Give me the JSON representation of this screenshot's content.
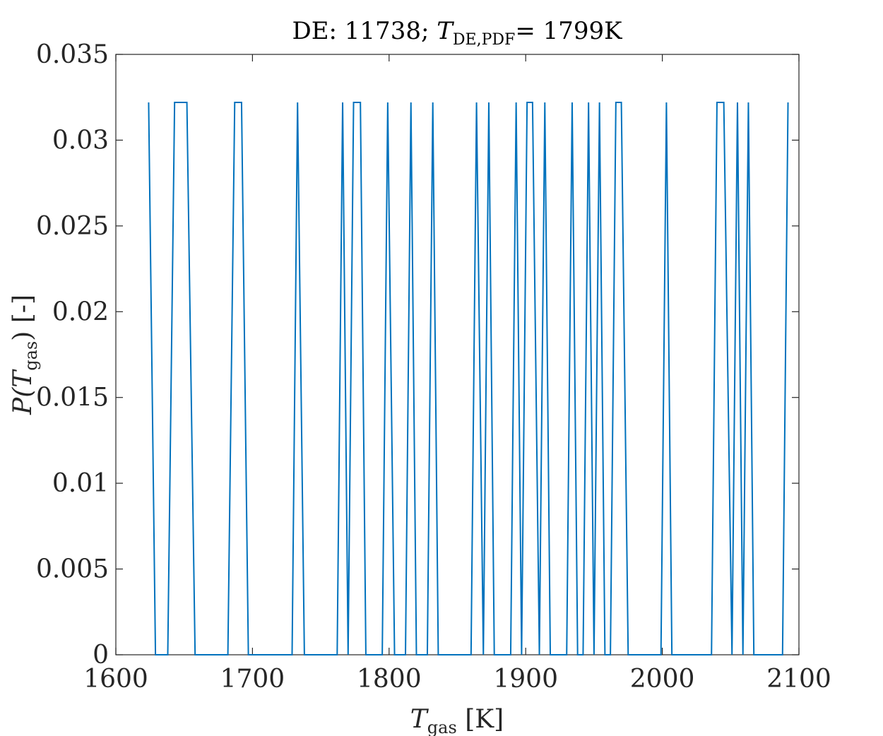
{
  "chart_data": {
    "type": "line",
    "title": {
      "prefix": "DE: 11738; ",
      "var": "T",
      "sub": "DE,PDF",
      "suffix": "= 1799K"
    },
    "xlabel": {
      "var": "T",
      "sub": "gas",
      "unit": " [K]"
    },
    "ylabel": {
      "text": "P(T",
      "sub": "gas",
      "suffix": ") [-]"
    },
    "xlim": [
      1600,
      2100
    ],
    "ylim": [
      0,
      0.035
    ],
    "xticks": [
      1600,
      1700,
      1800,
      1900,
      2000,
      2100
    ],
    "xtick_labels": [
      "1600",
      "1700",
      "1800",
      "1900",
      "2000",
      "2100"
    ],
    "yticks": [
      0,
      0.005,
      0.01,
      0.015,
      0.02,
      0.025,
      0.03,
      0.035
    ],
    "ytick_labels": [
      "0",
      "0.005",
      "0.01",
      "0.015",
      "0.02",
      "0.025",
      "0.03",
      "0.035"
    ],
    "grid": false,
    "box": true,
    "series": [
      {
        "color": "#0072BD",
        "x": [
          1624,
          1629,
          1638,
          1643,
          1652,
          1658,
          1682,
          1687,
          1692,
          1697,
          1709,
          1729,
          1733,
          1738,
          1762,
          1766,
          1770,
          1774,
          1779,
          1783,
          1795,
          1799,
          1804,
          1812,
          1816,
          1820,
          1828,
          1832,
          1836,
          1860,
          1864,
          1869,
          1873,
          1877,
          1881,
          1889,
          1893,
          1897,
          1901,
          1905,
          1910,
          1914,
          1918,
          1922,
          1930,
          1934,
          1938,
          1942,
          1946,
          1950,
          1954,
          1958,
          1962,
          1966,
          1970,
          1975,
          1979,
          1999,
          2003,
          2007,
          2036,
          2040,
          2045,
          2051,
          2055,
          2059,
          2063,
          2067,
          2071,
          2075,
          2088,
          2092
        ],
        "y": [
          0.0322,
          0,
          0,
          0.0322,
          0.0322,
          0,
          0,
          0.0322,
          0.0322,
          0,
          0,
          0,
          0.0322,
          0,
          0,
          0.0322,
          0,
          0.0322,
          0.0322,
          0,
          0,
          0.0322,
          0,
          0,
          0.0322,
          0,
          0,
          0.0322,
          0,
          0,
          0.0322,
          0,
          0.0322,
          0,
          0,
          0,
          0.0322,
          0,
          0.0322,
          0.0322,
          0,
          0.0322,
          0,
          0,
          0,
          0.0322,
          0,
          0,
          0.0322,
          0,
          0.0322,
          0,
          0,
          0.0322,
          0.0322,
          0,
          0,
          0,
          0.0322,
          0,
          0,
          0.0322,
          0.0322,
          0,
          0.0322,
          0,
          0.0322,
          0,
          0,
          0,
          0,
          0.0322
        ]
      }
    ]
  }
}
